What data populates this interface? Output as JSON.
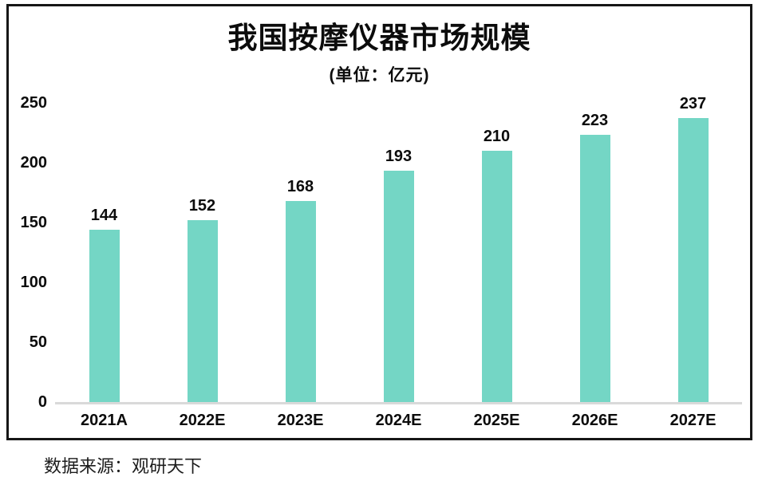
{
  "chart": {
    "title": "我国按摩仪器市场规模",
    "subtitle": "(单位：亿元)",
    "bar_color": "#74d6c5",
    "axis_line_color": "#d9d9d9",
    "frame_border_color": "#161616",
    "text_color": "#0c0c0c"
  },
  "chart_data": {
    "type": "bar",
    "categories": [
      "2021A",
      "2022E",
      "2023E",
      "2024E",
      "2025E",
      "2026E",
      "2027E"
    ],
    "values": [
      144,
      152,
      168,
      193,
      210,
      223,
      237
    ],
    "title": "我国按摩仪器市场规模",
    "subtitle": "(单位：亿元)",
    "xlabel": "",
    "ylabel": "",
    "ylim": [
      0,
      250
    ],
    "yticks": [
      0,
      50,
      100,
      150,
      200,
      250
    ],
    "grid": false,
    "legend": false,
    "data_labels": true
  },
  "footer": {
    "source": "数据来源：观研天下"
  }
}
